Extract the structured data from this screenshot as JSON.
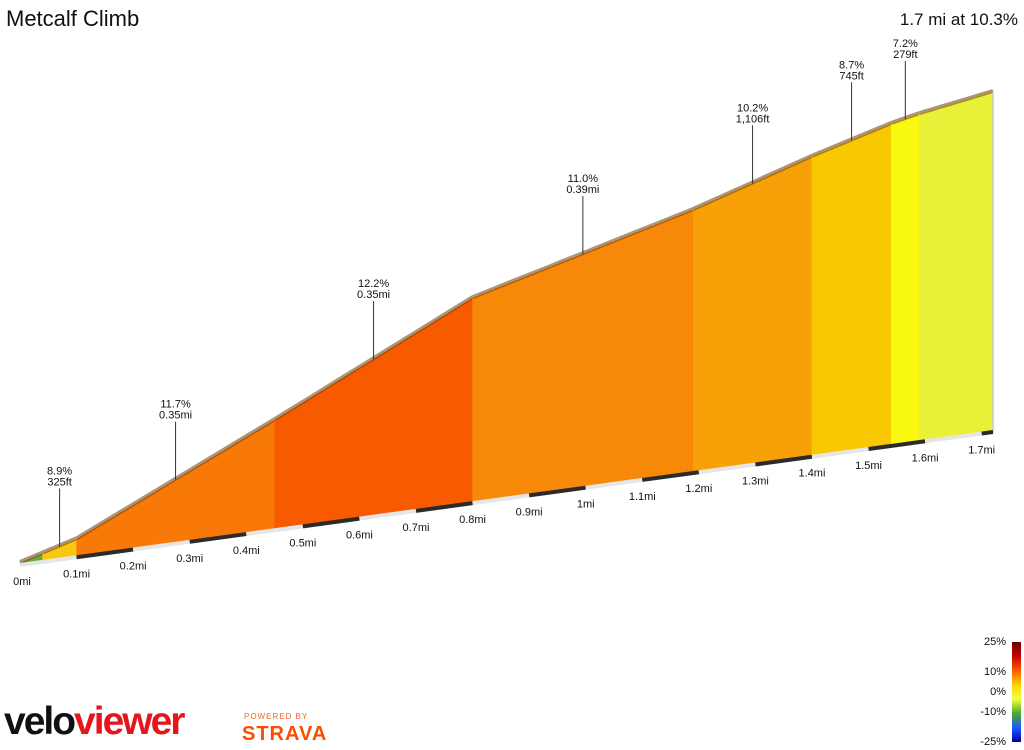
{
  "header": {
    "title": "Metcalf Climb",
    "summary": "1.7 mi at 10.3%"
  },
  "chart_data": {
    "type": "area",
    "title": "Metcalf Climb",
    "distance_unit": "mi",
    "x_ticks": [
      "0mi",
      "0.1mi",
      "0.2mi",
      "0.3mi",
      "0.4mi",
      "0.5mi",
      "0.6mi",
      "0.7mi",
      "0.8mi",
      "0.9mi",
      "1mi",
      "1.1mi",
      "1.2mi",
      "1.3mi",
      "1.4mi",
      "1.5mi",
      "1.6mi",
      "1.7mi"
    ],
    "segments": [
      {
        "start": 0.0,
        "end": 0.04,
        "grade": 5.0,
        "color": "#6aaa3c"
      },
      {
        "start": 0.04,
        "end": 0.1,
        "grade": 8.9,
        "color": "#f8c810",
        "label_grade": "8.9%",
        "label_len": "325ft"
      },
      {
        "start": 0.1,
        "end": 0.45,
        "grade": 11.7,
        "color": "#f87808",
        "label_grade": "11.7%",
        "label_len": "0.35mi"
      },
      {
        "start": 0.45,
        "end": 0.8,
        "grade": 12.2,
        "color": "#f85a00",
        "label_grade": "12.2%",
        "label_len": "0.35mi"
      },
      {
        "start": 0.8,
        "end": 1.19,
        "grade": 11.0,
        "color": "#f88808",
        "label_grade": "11.0%",
        "label_len": "0.39mi"
      },
      {
        "start": 1.19,
        "end": 1.4,
        "grade": 10.2,
        "color": "#f8a008",
        "label_grade": "10.2%",
        "label_len": "1,106ft"
      },
      {
        "start": 1.4,
        "end": 1.54,
        "grade": 8.7,
        "color": "#f8c800",
        "label_grade": "8.7%",
        "label_len": "745ft"
      },
      {
        "start": 1.54,
        "end": 1.59,
        "grade": 7.2,
        "color": "#f8f810",
        "label_grade": "7.2%",
        "label_len": "279ft"
      },
      {
        "start": 1.59,
        "end": 1.72,
        "grade": 6.5,
        "color": "#e8f038"
      }
    ]
  },
  "legend": {
    "labels": [
      "25%",
      "10%",
      "0%",
      "-10%",
      "-25%"
    ]
  },
  "branding": {
    "logo_velo": "velo",
    "logo_viewer": "viewer",
    "powered": "POWERED BY",
    "strava": "STRAVA"
  }
}
